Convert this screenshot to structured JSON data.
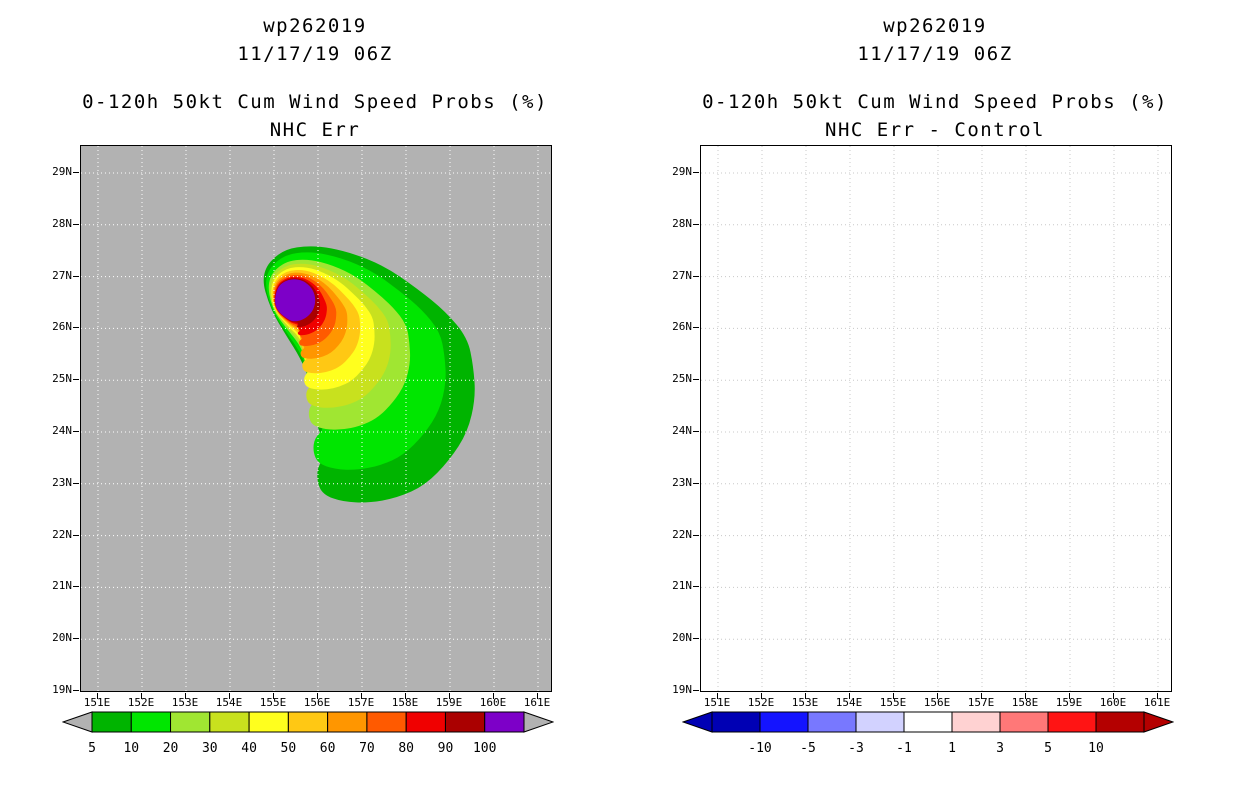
{
  "figure": {
    "storm_id": "wp262019",
    "init_time": "11/17/19 06Z"
  },
  "colors": {
    "map_background": "#b2b2b2",
    "frame": "#000000",
    "grid_left_panel": "#ffffff",
    "grid_right_panel": "#c8c8c8",
    "text": "#000000"
  },
  "panels": [
    {
      "titles": [
        "wp262019",
        "11/17/19 06Z"
      ],
      "subtitles": [
        "0-120h 50kt Cum Wind Speed Probs (%)",
        "NHC Err"
      ],
      "lat_ticks": [
        "29N",
        "28N",
        "27N",
        "26N",
        "25N",
        "24N",
        "23N",
        "22N",
        "21N",
        "20N",
        "19N"
      ],
      "lon_ticks": [
        "151E",
        "152E",
        "153E",
        "154E",
        "155E",
        "156E",
        "157E",
        "158E",
        "159E",
        "160E",
        "161E"
      ],
      "colorbar": {
        "labels": [
          "5",
          "10",
          "20",
          "30",
          "40",
          "50",
          "60",
          "70",
          "80",
          "90",
          "100"
        ],
        "segment_colors": [
          "#00b400",
          "#00e600",
          "#a0e632",
          "#c8e11e",
          "#ffff1e",
          "#ffc814",
          "#ff9600",
          "#ff5a00",
          "#f00000",
          "#aa0000",
          "#7d00c8"
        ],
        "left_arrow_color": "#b2b2b2",
        "right_arrow_color": "#b2b2b2",
        "label_mode": "segment-start"
      }
    },
    {
      "titles": [
        "wp262019",
        "11/17/19 06Z"
      ],
      "subtitles": [
        "0-120h 50kt Cum Wind Speed Probs (%)",
        "NHC Err - Control"
      ],
      "lat_ticks": [
        "29N",
        "28N",
        "27N",
        "26N",
        "25N",
        "24N",
        "23N",
        "22N",
        "21N",
        "20N",
        "19N"
      ],
      "lon_ticks": [
        "151E",
        "152E",
        "153E",
        "154E",
        "155E",
        "156E",
        "157E",
        "158E",
        "159E",
        "160E",
        "161E"
      ],
      "colorbar": {
        "labels": [
          "-10",
          "-5",
          "-3",
          "-1",
          "1",
          "3",
          "5",
          "10"
        ],
        "segment_colors": [
          "#0000b4",
          "#1414ff",
          "#7878ff",
          "#d2d2ff",
          "#ffffff",
          "#ffd2d2",
          "#ff7878",
          "#ff1414",
          "#b40000"
        ],
        "left_arrow_color": "#0000b4",
        "right_arrow_color": "#b40000",
        "label_mode": "boundaries"
      }
    }
  ],
  "chart_data": [
    {
      "type": "contour",
      "panel": "left",
      "storm_id": "wp262019",
      "init_time": "11/17/19 06Z",
      "field": "0-120h 50kt Cum Wind Speed Probs (%)",
      "experiment": "NHC Err",
      "x_axis": {
        "ticks": [
          "151E",
          "152E",
          "153E",
          "154E",
          "155E",
          "156E",
          "157E",
          "158E",
          "159E",
          "160E",
          "161E"
        ],
        "lon_e_range": [
          150.61,
          161.31
        ]
      },
      "y_axis": {
        "ticks": [
          "29N",
          "28N",
          "27N",
          "26N",
          "25N",
          "24N",
          "23N",
          "22N",
          "21N",
          "20N",
          "19N"
        ],
        "lat_n_range": [
          19.0,
          29.52
        ]
      },
      "grid": "1-degree dotted graticule",
      "background_below_min": "#b2b2b2",
      "levels_percent": [
        5,
        10,
        20,
        30,
        40,
        50,
        60,
        70,
        80,
        90,
        100
      ],
      "level_colors": [
        "#00b400",
        "#00e600",
        "#a0e632",
        "#c8e11e",
        "#ffff1e",
        "#ffc814",
        "#ff9600",
        "#ff5a00",
        "#f00000",
        "#aa0000",
        "#7d00c8"
      ],
      "max_value_percent": 100,
      "max_location": {
        "lon_e": 155.45,
        "lat_n": 26.55
      },
      "outer_5pct_outline_lonlat": [
        [
          154.7,
          27.05
        ],
        [
          155.16,
          27.51
        ],
        [
          155.89,
          27.6
        ],
        [
          156.7,
          27.47
        ],
        [
          157.52,
          27.19
        ],
        [
          158.25,
          26.76
        ],
        [
          158.89,
          26.32
        ],
        [
          159.39,
          25.81
        ],
        [
          159.52,
          25.27
        ],
        [
          159.57,
          24.66
        ],
        [
          159.39,
          24.0
        ],
        [
          158.98,
          23.46
        ],
        [
          158.43,
          22.98
        ],
        [
          157.8,
          22.74
        ],
        [
          157.16,
          22.64
        ],
        [
          156.57,
          22.66
        ],
        [
          156.11,
          22.8
        ],
        [
          155.98,
          23.08
        ],
        [
          156.02,
          23.38
        ],
        [
          156.3,
          23.62
        ],
        [
          156.05,
          23.96
        ],
        [
          155.91,
          24.39
        ],
        [
          155.86,
          24.73
        ],
        [
          155.8,
          25.04
        ],
        [
          155.61,
          25.43
        ],
        [
          155.3,
          25.85
        ],
        [
          154.93,
          26.37
        ]
      ],
      "ring_shrink_t": [
        0,
        0.18,
        0.4,
        0.52,
        0.62,
        0.71,
        0.79,
        0.86,
        0.92,
        0.965,
        1.0
      ],
      "core_radius_px": 21
    },
    {
      "type": "contour",
      "panel": "right",
      "storm_id": "wp262019",
      "init_time": "11/17/19 06Z",
      "field": "0-120h 50kt Cum Wind Speed Probs (%)",
      "experiment": "NHC Err - Control",
      "x_axis": {
        "ticks": [
          "151E",
          "152E",
          "153E",
          "154E",
          "155E",
          "156E",
          "157E",
          "158E",
          "159E",
          "160E",
          "161E"
        ],
        "lon_e_range": [
          150.61,
          161.31
        ]
      },
      "y_axis": {
        "ticks": [
          "29N",
          "28N",
          "27N",
          "26N",
          "25N",
          "24N",
          "23N",
          "22N",
          "21N",
          "20N",
          "19N"
        ],
        "lat_n_range": [
          19.0,
          29.52
        ]
      },
      "grid": "1-degree dotted graticule",
      "levels_percent_diff": [
        -10,
        -5,
        -3,
        -1,
        1,
        3,
        5,
        10
      ],
      "level_colors": [
        "#0000b4",
        "#1414ff",
        "#7878ff",
        "#d2d2ff",
        "#ffffff",
        "#ffd2d2",
        "#ff7878",
        "#ff1414",
        "#b40000"
      ],
      "values": [],
      "note": "difference field is empty (no shaded contours)"
    }
  ]
}
